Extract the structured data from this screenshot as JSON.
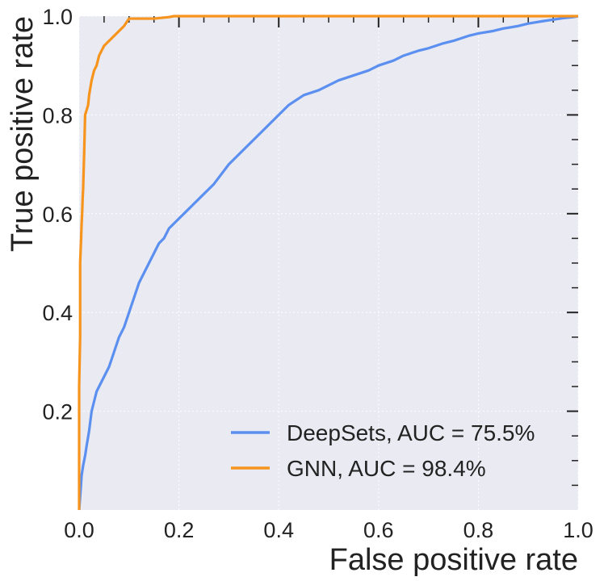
{
  "chart_data": {
    "type": "line",
    "title": "",
    "xlabel": "False positive rate",
    "ylabel": "True positive rate",
    "xlim": [
      0.0,
      1.0
    ],
    "ylim": [
      0.0,
      1.0
    ],
    "grid": true,
    "legend_position": "bottom-right",
    "x_ticks": [
      0.0,
      0.2,
      0.4,
      0.6,
      0.8,
      1.0
    ],
    "x_tick_labels": [
      "0.0",
      "0.2",
      "0.4",
      "0.6",
      "0.8",
      "1.0"
    ],
    "y_ticks": [
      0.2,
      0.4,
      0.6,
      0.8,
      1.0
    ],
    "y_tick_labels": [
      "0.2",
      "0.4",
      "0.6",
      "0.8",
      "1.0"
    ],
    "series": [
      {
        "name": "DeepSets, AUC = 75.5%",
        "color": "#5b8ff0",
        "x": [
          0.0,
          0.003,
          0.005,
          0.008,
          0.012,
          0.015,
          0.02,
          0.025,
          0.03,
          0.035,
          0.04,
          0.05,
          0.06,
          0.07,
          0.08,
          0.09,
          0.1,
          0.11,
          0.12,
          0.13,
          0.14,
          0.15,
          0.16,
          0.17,
          0.18,
          0.19,
          0.2,
          0.22,
          0.24,
          0.25,
          0.27,
          0.3,
          0.32,
          0.35,
          0.38,
          0.4,
          0.42,
          0.45,
          0.48,
          0.5,
          0.52,
          0.55,
          0.58,
          0.6,
          0.63,
          0.65,
          0.68,
          0.7,
          0.73,
          0.75,
          0.78,
          0.8,
          0.83,
          0.85,
          0.88,
          0.9,
          0.93,
          0.95,
          0.97,
          0.99,
          1.0
        ],
        "y": [
          0.0,
          0.04,
          0.07,
          0.09,
          0.11,
          0.13,
          0.16,
          0.2,
          0.22,
          0.24,
          0.25,
          0.27,
          0.29,
          0.32,
          0.35,
          0.37,
          0.4,
          0.43,
          0.46,
          0.48,
          0.5,
          0.52,
          0.54,
          0.55,
          0.57,
          0.58,
          0.59,
          0.61,
          0.63,
          0.64,
          0.66,
          0.7,
          0.72,
          0.75,
          0.78,
          0.8,
          0.82,
          0.84,
          0.85,
          0.86,
          0.87,
          0.88,
          0.89,
          0.9,
          0.91,
          0.92,
          0.93,
          0.935,
          0.945,
          0.95,
          0.96,
          0.965,
          0.97,
          0.975,
          0.98,
          0.985,
          0.99,
          0.993,
          0.996,
          0.998,
          1.0
        ]
      },
      {
        "name": "GNN, AUC = 98.4%",
        "color": "#f7941d",
        "x": [
          0.0,
          0.0,
          0.002,
          0.002,
          0.004,
          0.005,
          0.006,
          0.007,
          0.008,
          0.01,
          0.012,
          0.015,
          0.018,
          0.02,
          0.025,
          0.03,
          0.035,
          0.04,
          0.045,
          0.05,
          0.06,
          0.07,
          0.08,
          0.09,
          0.1,
          0.12,
          0.15,
          0.18,
          0.19,
          0.2,
          0.3,
          0.5,
          0.7,
          0.9,
          1.0
        ],
        "y": [
          0.0,
          0.25,
          0.35,
          0.5,
          0.55,
          0.58,
          0.6,
          0.63,
          0.65,
          0.72,
          0.8,
          0.81,
          0.82,
          0.84,
          0.87,
          0.89,
          0.9,
          0.92,
          0.93,
          0.94,
          0.95,
          0.96,
          0.97,
          0.98,
          0.995,
          0.995,
          0.995,
          0.998,
          1.0,
          1.0,
          1.0,
          1.0,
          1.0,
          1.0,
          1.0
        ]
      }
    ]
  }
}
